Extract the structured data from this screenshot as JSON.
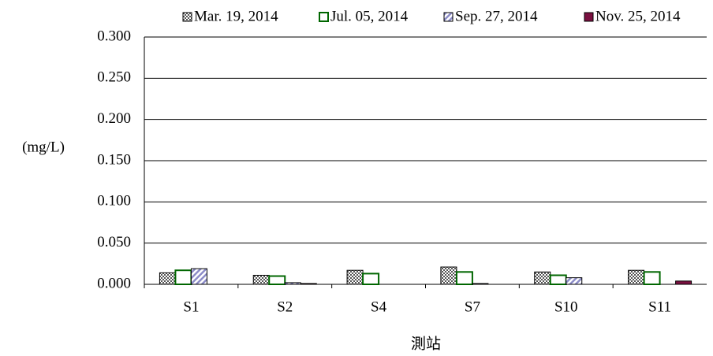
{
  "chart_data": {
    "type": "bar",
    "ylabel": "(mg/L)",
    "xlabel": "測站",
    "categories": [
      "S1",
      "S2",
      "S4",
      "S7",
      "S10",
      "S11"
    ],
    "series": [
      {
        "name": "Mar. 19, 2014",
        "color": "#555555",
        "values": [
          0.014,
          0.011,
          0.017,
          0.021,
          0.015,
          0.017
        ]
      },
      {
        "name": "Jul. 05, 2014",
        "color": "#006600",
        "values": [
          0.017,
          0.01,
          0.013,
          0.015,
          0.011,
          0.015
        ]
      },
      {
        "name": "Sep. 27, 2014",
        "color": "#8c8cc8",
        "values": [
          0.019,
          0.002,
          0,
          0.001,
          0.008,
          0
        ]
      },
      {
        "name": "Nov. 25, 2014",
        "color": "#7a1040",
        "values": [
          0,
          0.001,
          0,
          0,
          0,
          0.004
        ]
      }
    ],
    "ylim": [
      0,
      0.3
    ],
    "yticks": [
      {
        "value": 0,
        "label": "0.000"
      },
      {
        "value": 0.05,
        "label": "0.050"
      },
      {
        "value": 0.1,
        "label": "0.100"
      },
      {
        "value": 0.15,
        "label": "0.150"
      },
      {
        "value": 0.2,
        "label": "0.200"
      },
      {
        "value": 0.25,
        "label": "0.250"
      },
      {
        "value": 0.3,
        "label": "0.300"
      }
    ],
    "grid": true,
    "legend": "top"
  }
}
